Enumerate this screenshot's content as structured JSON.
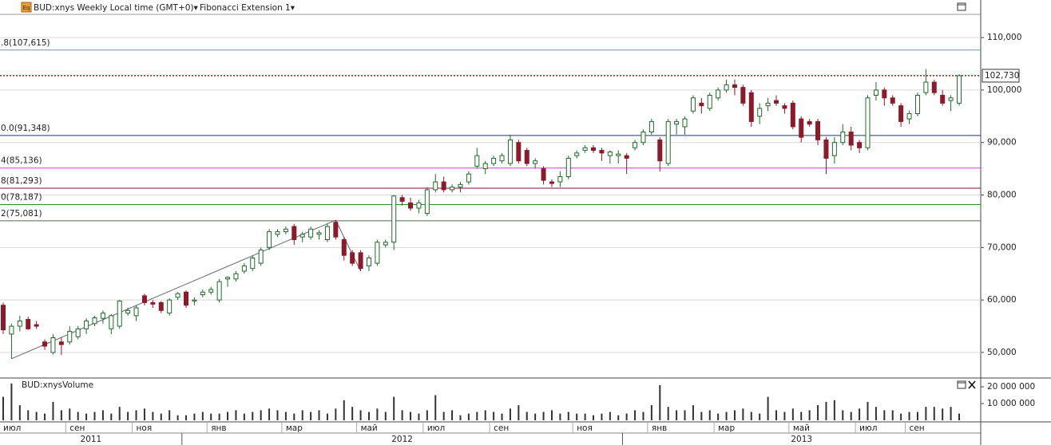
{
  "chart_data": {
    "type": "candlestick",
    "title": "BUD:xnys Weekly Local time (GMT+0)▾",
    "tool_label": "Fibonacci Extension 1▾",
    "icon_label": "Eq",
    "categories": [
      "июл",
      null,
      null,
      null,
      null,
      null,
      null,
      null,
      "сен",
      null,
      null,
      null,
      null,
      null,
      null,
      null,
      "ноя",
      null,
      null,
      null,
      null,
      null,
      null,
      null,
      null,
      "янв",
      null,
      null,
      null,
      null,
      null,
      null,
      null,
      null,
      "мар",
      null,
      null,
      null,
      null,
      null,
      null,
      null,
      null,
      "май",
      null,
      null,
      null,
      null,
      null,
      null,
      null,
      "июл",
      null,
      null,
      null,
      null,
      null,
      null,
      null,
      "сен",
      null,
      null,
      null,
      null,
      null,
      null,
      null,
      null,
      null,
      "ноя",
      null,
      null,
      null,
      null,
      null,
      null,
      null,
      null,
      "янв",
      null,
      null,
      null,
      null,
      null,
      null,
      null,
      "мар",
      null,
      null,
      null,
      null,
      null,
      null,
      null,
      null,
      "май",
      null,
      null,
      null,
      null,
      null,
      null,
      null,
      "июл",
      null,
      null,
      null,
      null,
      null,
      "сен",
      null,
      null,
      null,
      null,
      null,
      null
    ],
    "years": [
      {
        "label": "2011",
        "first_week": 0
      },
      {
        "label": "2012",
        "first_week": 22
      },
      {
        "label": "2013",
        "first_week": 75
      }
    ],
    "open": [
      59000,
      53500,
      55000,
      56300,
      55300,
      52000,
      50000,
      52000,
      52000,
      53000,
      54500,
      55500,
      56500,
      54500,
      55000,
      57500,
      57000,
      60800,
      59500,
      59500,
      57500,
      60500,
      61500,
      59800,
      61000,
      61500,
      60000,
      64000,
      64000,
      65500,
      66000,
      67000,
      70000,
      72500,
      73000,
      74000,
      72000,
      72000,
      72500,
      71500,
      74800,
      71500,
      69000,
      69000,
      66500,
      67000,
      70500,
      71000,
      79500,
      78500,
      77500,
      76500,
      81000,
      82500,
      81000,
      81500,
      82500,
      85500,
      85000,
      86000,
      86500,
      86000,
      90000,
      88500,
      86000,
      85000,
      82500,
      82500,
      83500,
      87500,
      88500,
      89000,
      88500,
      87500,
      87500,
      87500,
      89000,
      90000,
      92000,
      90500,
      86000,
      93500,
      93000,
      96000,
      97500,
      96500,
      98500,
      100000,
      101000,
      100500,
      99500,
      95000,
      97000,
      98000,
      97000,
      97500,
      94500,
      94000,
      94000,
      90500,
      87500,
      90000,
      92000,
      90000,
      89000,
      99000,
      100000,
      98500,
      97000,
      94500,
      95500,
      99500,
      101500,
      99000,
      98000,
      97500
    ],
    "high": [
      59500,
      55500,
      57000,
      56800,
      56000,
      52500,
      53500,
      52800,
      55000,
      55000,
      56500,
      57000,
      58000,
      57300,
      60000,
      58500,
      59000,
      61200,
      60000,
      59800,
      60300,
      61500,
      61800,
      60500,
      62000,
      62500,
      64000,
      64500,
      65500,
      67000,
      68500,
      70000,
      73500,
      73500,
      74000,
      74500,
      73000,
      74000,
      73300,
      74500,
      75200,
      72000,
      69500,
      69500,
      68500,
      71500,
      71500,
      80000,
      80000,
      79500,
      79000,
      81500,
      84000,
      83500,
      82000,
      82500,
      84500,
      89000,
      86500,
      87500,
      88000,
      91500,
      90500,
      89000,
      87000,
      85500,
      83000,
      84500,
      87500,
      88500,
      89500,
      89500,
      89000,
      88500,
      88500,
      88000,
      90500,
      92500,
      94500,
      91000,
      94500,
      94500,
      95000,
      99000,
      98500,
      99500,
      100500,
      102000,
      102000,
      101000,
      100000,
      97500,
      98500,
      99000,
      97500,
      98000,
      95000,
      94500,
      94500,
      91000,
      91000,
      93500,
      93000,
      90500,
      99000,
      101500,
      100500,
      99000,
      97500,
      96000,
      99500,
      104000,
      102000,
      100000,
      99000,
      103000
    ],
    "low": [
      53500,
      48800,
      54000,
      54300,
      54500,
      50500,
      49600,
      49500,
      51500,
      52500,
      53500,
      55000,
      55500,
      53500,
      54500,
      57000,
      56000,
      59000,
      58500,
      57500,
      57000,
      60000,
      58500,
      59000,
      60500,
      61000,
      59500,
      62500,
      63500,
      65000,
      65500,
      66500,
      69500,
      72000,
      72500,
      70500,
      71000,
      71500,
      71500,
      71000,
      71500,
      67500,
      66500,
      65500,
      65500,
      66500,
      70000,
      69500,
      78000,
      77000,
      76500,
      76000,
      80500,
      80500,
      80500,
      80500,
      82000,
      85000,
      84000,
      85500,
      86000,
      85500,
      86000,
      85500,
      85000,
      82000,
      81500,
      81500,
      83000,
      87000,
      88000,
      88000,
      86500,
      86000,
      86000,
      84000,
      88500,
      89500,
      91500,
      84500,
      85500,
      91500,
      91500,
      95500,
      95500,
      96000,
      98000,
      99500,
      99000,
      97000,
      93000,
      93500,
      96000,
      97000,
      95500,
      92500,
      90000,
      93000,
      89500,
      84000,
      86000,
      89500,
      88500,
      88000,
      88500,
      98000,
      97000,
      97000,
      93000,
      93500,
      95000,
      99000,
      99000,
      97000,
      96000,
      97000
    ],
    "close": [
      54300,
      55000,
      56000,
      54500,
      55000,
      51200,
      52800,
      51500,
      54000,
      54500,
      56000,
      56600,
      57500,
      57000,
      59800,
      58000,
      58500,
      59500,
      59200,
      58000,
      60000,
      61200,
      59000,
      60000,
      61500,
      62000,
      63500,
      64300,
      65000,
      66500,
      68000,
      69500,
      73000,
      73000,
      73500,
      71500,
      72500,
      73500,
      72800,
      74000,
      72000,
      68500,
      67000,
      66000,
      68000,
      71000,
      71000,
      79800,
      78800,
      77500,
      78500,
      81000,
      82500,
      81000,
      81500,
      82000,
      84000,
      87500,
      86000,
      87000,
      87500,
      90500,
      86500,
      86000,
      86500,
      82800,
      82200,
      83500,
      87000,
      88000,
      89000,
      88500,
      88000,
      88200,
      87800,
      87000,
      90000,
      92000,
      94000,
      86500,
      94000,
      94000,
      94500,
      98500,
      97000,
      99000,
      100000,
      101000,
      100500,
      97500,
      94000,
      96500,
      97500,
      97500,
      96500,
      93000,
      91000,
      93500,
      90500,
      87000,
      90000,
      92000,
      89500,
      89000,
      98500,
      100000,
      98500,
      97500,
      94000,
      95500,
      99000,
      101500,
      99500,
      97500,
      98500,
      102730
    ],
    "up_color": "#1e6b2a",
    "down_color": "#8b1a2a",
    "ylim": [
      45280,
      114420
    ],
    "yticks": [
      {
        "value": 50000,
        "label": "50,000"
      },
      {
        "value": 60000,
        "label": "60,000"
      },
      {
        "value": 70000,
        "label": "70,000"
      },
      {
        "value": 80000,
        "label": "80,000"
      },
      {
        "value": 90000,
        "label": "90,000"
      },
      {
        "value": 100000,
        "label": "100,000"
      },
      {
        "value": 110000,
        "label": "110,000"
      }
    ],
    "grid": true,
    "last_price": {
      "value": 102730,
      "label": "102,730",
      "color": "#cc1111"
    },
    "fib_levels": [
      {
        "label": ".8(107,615)",
        "value": 107615,
        "color": "#5b9fb0"
      },
      {
        "label": "0.0(91,348)",
        "value": 91348,
        "color": "#1f2f9e"
      },
      {
        "label": "4(85,136)",
        "value": 85136,
        "color": "#d13ad1"
      },
      {
        "label": "8(81,293)",
        "value": 81293,
        "color": "#7a1040"
      },
      {
        "label": "0(78,187)",
        "value": 78187,
        "color": "#2e8b2e"
      },
      {
        "label": "2(75,081)",
        "value": 75081,
        "color": "#4f6a4f"
      }
    ],
    "fib_anchors": [
      {
        "week": 1,
        "price": 48800
      },
      {
        "week": 40,
        "price": 75200
      },
      {
        "week": 43,
        "price": 65500
      }
    ],
    "volume": {
      "title": "BUD:xnysVolume",
      "values": [
        14000000,
        22000000,
        9000000,
        6000000,
        5000000,
        4000000,
        11000000,
        6000000,
        7000000,
        5000000,
        4000000,
        5000000,
        6000000,
        4000000,
        8000000,
        5000000,
        6000000,
        7000000,
        5000000,
        4000000,
        6000000,
        3000000,
        3000000,
        4000000,
        5000000,
        4000000,
        4000000,
        5000000,
        6000000,
        4000000,
        5000000,
        6000000,
        7000000,
        6000000,
        5000000,
        4000000,
        6000000,
        5000000,
        6000000,
        4000000,
        7000000,
        12000000,
        8000000,
        6000000,
        5000000,
        7000000,
        5000000,
        14000000,
        6000000,
        5000000,
        4000000,
        6000000,
        15000000,
        5000000,
        6000000,
        3000000,
        4000000,
        5000000,
        6000000,
        5000000,
        4000000,
        7000000,
        9000000,
        5000000,
        4000000,
        5000000,
        6000000,
        4000000,
        5000000,
        4000000,
        4000000,
        3000000,
        4000000,
        5000000,
        3000000,
        4000000,
        6000000,
        5000000,
        9000000,
        21000000,
        8000000,
        6000000,
        6000000,
        9000000,
        5000000,
        6000000,
        4000000,
        5000000,
        6000000,
        7000000,
        5000000,
        4000000,
        14000000,
        6000000,
        5000000,
        7000000,
        5000000,
        6000000,
        9000000,
        11000000,
        12000000,
        6000000,
        5000000,
        7000000,
        11000000,
        8000000,
        6000000,
        6000000,
        4000000,
        5000000,
        5000000,
        8000000,
        8000000,
        7000000,
        8000000,
        4000000
      ],
      "color": "#333333",
      "ylim": [
        0,
        24300000
      ],
      "yticks": [
        {
          "value": 10000000,
          "label": "10 000 000"
        },
        {
          "value": 20000000,
          "label": "20 000 000"
        }
      ]
    }
  }
}
